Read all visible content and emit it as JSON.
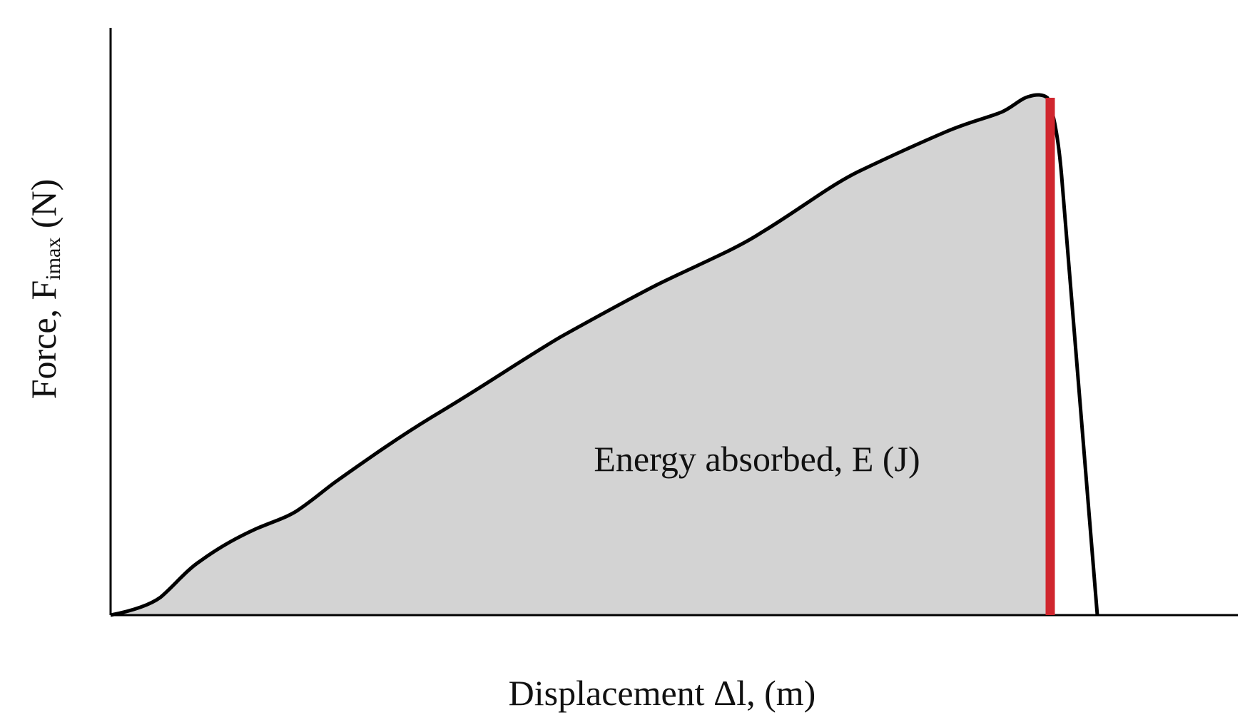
{
  "axes": {
    "y_label": {
      "main": "Force, F",
      "subscript": "imax",
      "unit": "(N)"
    },
    "x_label": "Displacement Δl, (m)"
  },
  "annotation": "Energy absorbed, E (J)"
}
